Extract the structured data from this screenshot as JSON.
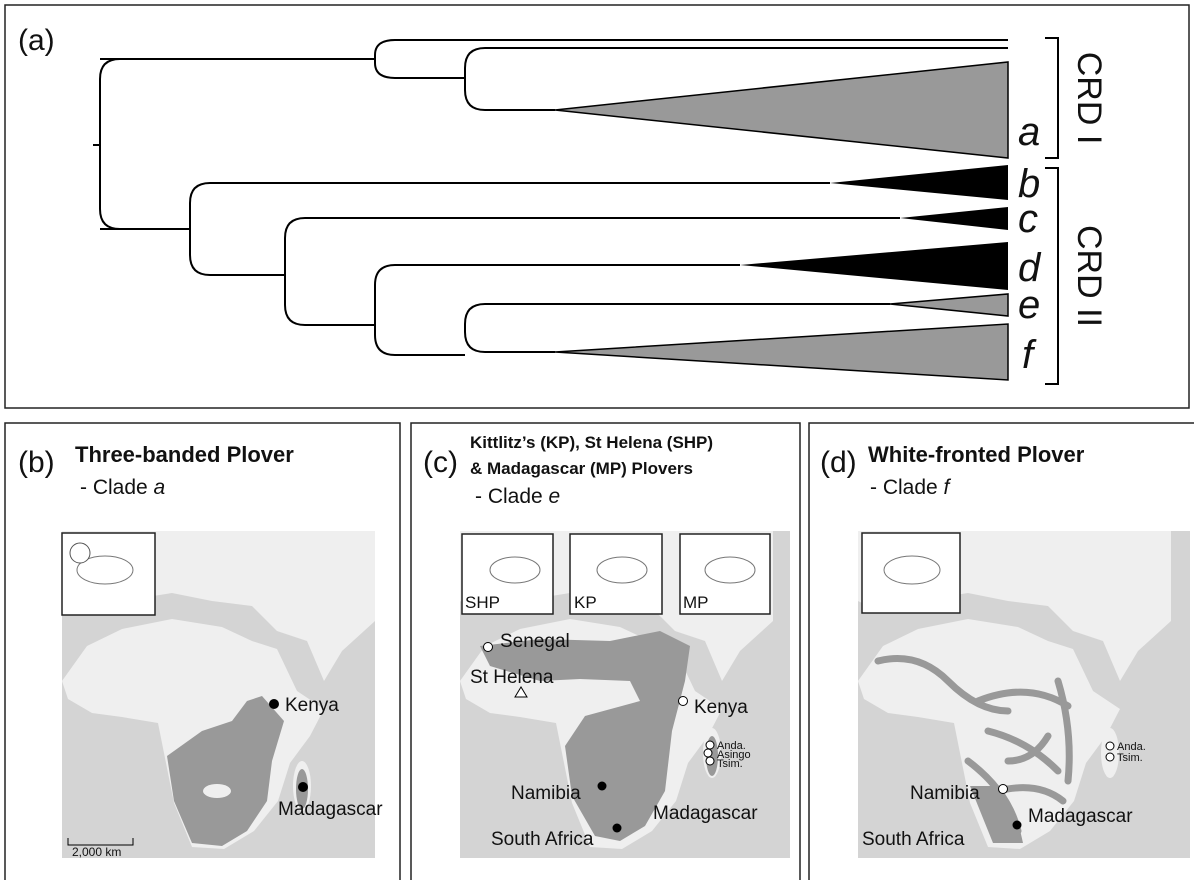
{
  "panel_a": {
    "label": "(a)",
    "clades": [
      "a",
      "b",
      "c",
      "d",
      "e",
      "f"
    ],
    "groups": [
      "CRD I",
      "CRD II"
    ]
  },
  "panel_b": {
    "label": "(b)",
    "title": "Three-banded Plover",
    "clade_prefix": "- Clade",
    "clade": "a",
    "places": [
      "Kenya",
      "Madagascar"
    ],
    "scale": "2,000 km"
  },
  "panel_c": {
    "label": "(c)",
    "title": [
      "Kittlitz’s (KP), St Helena (SHP)",
      "& Madagascar (MP) Plovers"
    ],
    "clade_prefix": "- Clade",
    "clade": "e",
    "birds": [
      "SHP",
      "KP",
      "MP"
    ],
    "places": [
      "Senegal",
      "Kenya",
      "St Helena",
      "Namibia",
      "Madagascar",
      "South Africa",
      "Anda.",
      "Asingo",
      "Tsim."
    ]
  },
  "panel_d": {
    "label": "(d)",
    "title": "White-fronted Plover",
    "clade_prefix": "- Clade",
    "clade": "f",
    "places": [
      "Namibia",
      "South Africa",
      "Madagascar",
      "Anda.",
      "Tsim."
    ]
  }
}
